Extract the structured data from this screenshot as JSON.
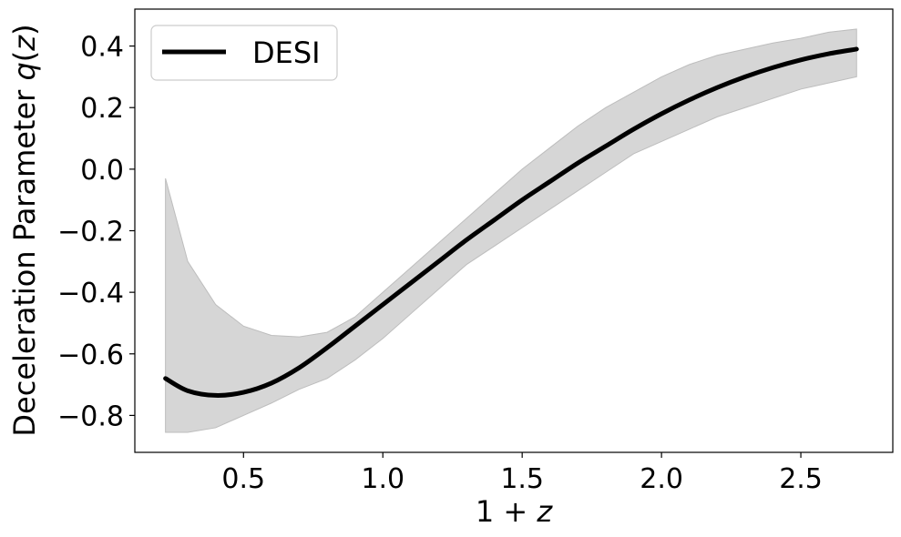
{
  "chart_data": {
    "type": "line",
    "title": "",
    "xlabel_parts": [
      "1 + ",
      "z"
    ],
    "ylabel_parts": [
      "Deceleration Parameter ",
      "q",
      "(",
      "z",
      ")"
    ],
    "xlim": [
      0.11,
      2.83
    ],
    "ylim": [
      -0.92,
      0.52
    ],
    "xticks": [
      0.5,
      1.0,
      1.5,
      2.0,
      2.5
    ],
    "xtick_labels": [
      "0.5",
      "1.0",
      "1.5",
      "2.0",
      "2.5"
    ],
    "yticks": [
      -0.8,
      -0.6,
      -0.4,
      -0.2,
      0.0,
      0.2,
      0.4
    ],
    "ytick_labels": [
      "−0.8",
      "−0.6",
      "−0.4",
      "−0.2",
      "0.0",
      "0.2",
      "0.4"
    ],
    "grid": false,
    "legend_position": "top-left",
    "series": [
      {
        "name": "DESI",
        "color": "#000000",
        "x": [
          0.22,
          0.3,
          0.4,
          0.5,
          0.6,
          0.7,
          0.8,
          0.9,
          1.0,
          1.1,
          1.2,
          1.3,
          1.4,
          1.5,
          1.6,
          1.7,
          1.8,
          1.9,
          2.0,
          2.1,
          2.2,
          2.3,
          2.4,
          2.5,
          2.6,
          2.7
        ],
        "y": [
          -0.68,
          -0.72,
          -0.735,
          -0.725,
          -0.695,
          -0.645,
          -0.58,
          -0.51,
          -0.44,
          -0.37,
          -0.3,
          -0.23,
          -0.165,
          -0.1,
          -0.04,
          0.02,
          0.075,
          0.13,
          0.18,
          0.225,
          0.265,
          0.3,
          0.33,
          0.355,
          0.375,
          0.39
        ]
      }
    ],
    "band": {
      "color": "#d6d6d6",
      "x": [
        0.22,
        0.3,
        0.4,
        0.5,
        0.6,
        0.7,
        0.8,
        0.9,
        1.0,
        1.1,
        1.2,
        1.3,
        1.4,
        1.5,
        1.6,
        1.7,
        1.8,
        1.9,
        2.0,
        2.1,
        2.2,
        2.3,
        2.4,
        2.5,
        2.6,
        2.7
      ],
      "upper": [
        -0.03,
        -0.3,
        -0.44,
        -0.51,
        -0.54,
        -0.545,
        -0.53,
        -0.48,
        -0.4,
        -0.32,
        -0.24,
        -0.16,
        -0.08,
        0.0,
        0.07,
        0.14,
        0.2,
        0.25,
        0.3,
        0.34,
        0.37,
        0.39,
        0.41,
        0.425,
        0.445,
        0.455
      ],
      "lower": [
        -0.855,
        -0.855,
        -0.84,
        -0.8,
        -0.76,
        -0.715,
        -0.68,
        -0.62,
        -0.55,
        -0.47,
        -0.39,
        -0.31,
        -0.25,
        -0.19,
        -0.13,
        -0.07,
        -0.01,
        0.05,
        0.09,
        0.13,
        0.17,
        0.2,
        0.23,
        0.26,
        0.28,
        0.3
      ]
    }
  }
}
